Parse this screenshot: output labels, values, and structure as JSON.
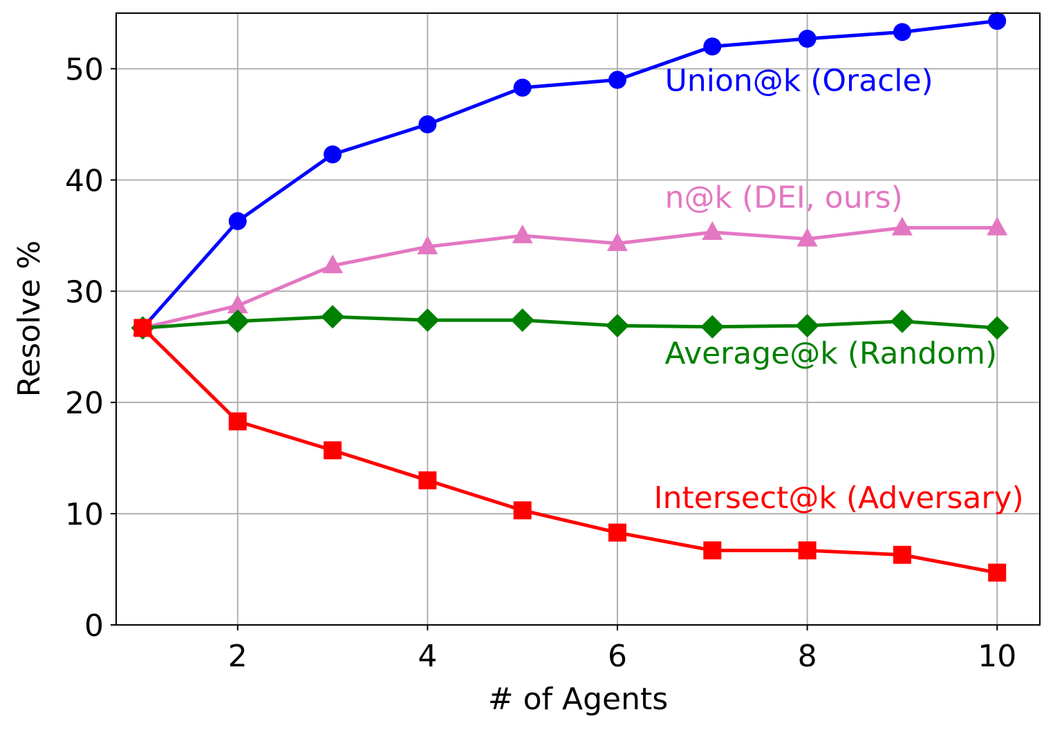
{
  "chart_data": {
    "type": "line",
    "title": "",
    "xlabel": "# of Agents",
    "ylabel": "Resolve %",
    "x": [
      1,
      2,
      3,
      4,
      5,
      6,
      7,
      8,
      9,
      10
    ],
    "xlim": [
      0.72,
      10.45
    ],
    "ylim": [
      0,
      55
    ],
    "xticks": [
      2,
      4,
      6,
      8,
      10
    ],
    "yticks": [
      0,
      10,
      20,
      30,
      40,
      50
    ],
    "grid": true,
    "legend": "none",
    "series": [
      {
        "name": "Union@k (Oracle)",
        "color": "#0000ff",
        "marker": "circle",
        "values": [
          26.7,
          36.3,
          42.3,
          45.0,
          48.3,
          49.0,
          52.0,
          52.7,
          53.3,
          54.3
        ]
      },
      {
        "name": "n@k (DEI, ours)",
        "color": "#e377c2",
        "marker": "triangle",
        "values": [
          26.7,
          28.7,
          32.3,
          34.0,
          35.0,
          34.3,
          35.3,
          34.7,
          35.7,
          35.7
        ]
      },
      {
        "name": "Average@k (Random)",
        "color": "#008000",
        "marker": "diamond",
        "values": [
          26.7,
          27.3,
          27.7,
          27.4,
          27.4,
          26.9,
          26.8,
          26.9,
          27.3,
          26.7
        ]
      },
      {
        "name": "Intersect@k (Adversary)",
        "color": "#ff0000",
        "marker": "square",
        "values": [
          26.7,
          18.3,
          15.7,
          13.0,
          10.3,
          8.3,
          6.7,
          6.7,
          6.3,
          4.7
        ]
      }
    ],
    "annotations": [
      {
        "text": "Union@k (Oracle)",
        "series": 0,
        "x": 6.5,
        "y": 48.0,
        "align": "start"
      },
      {
        "text": "n@k (DEI, ours)",
        "series": 1,
        "x": 6.5,
        "y": 37.5,
        "align": "start"
      },
      {
        "text": "Average@k (Random)",
        "series": 2,
        "x": 10.0,
        "y": 23.5,
        "align": "end"
      },
      {
        "text": "Intersect@k (Adversary)",
        "series": 3,
        "x": 10.28,
        "y": 10.5,
        "align": "end"
      }
    ]
  }
}
